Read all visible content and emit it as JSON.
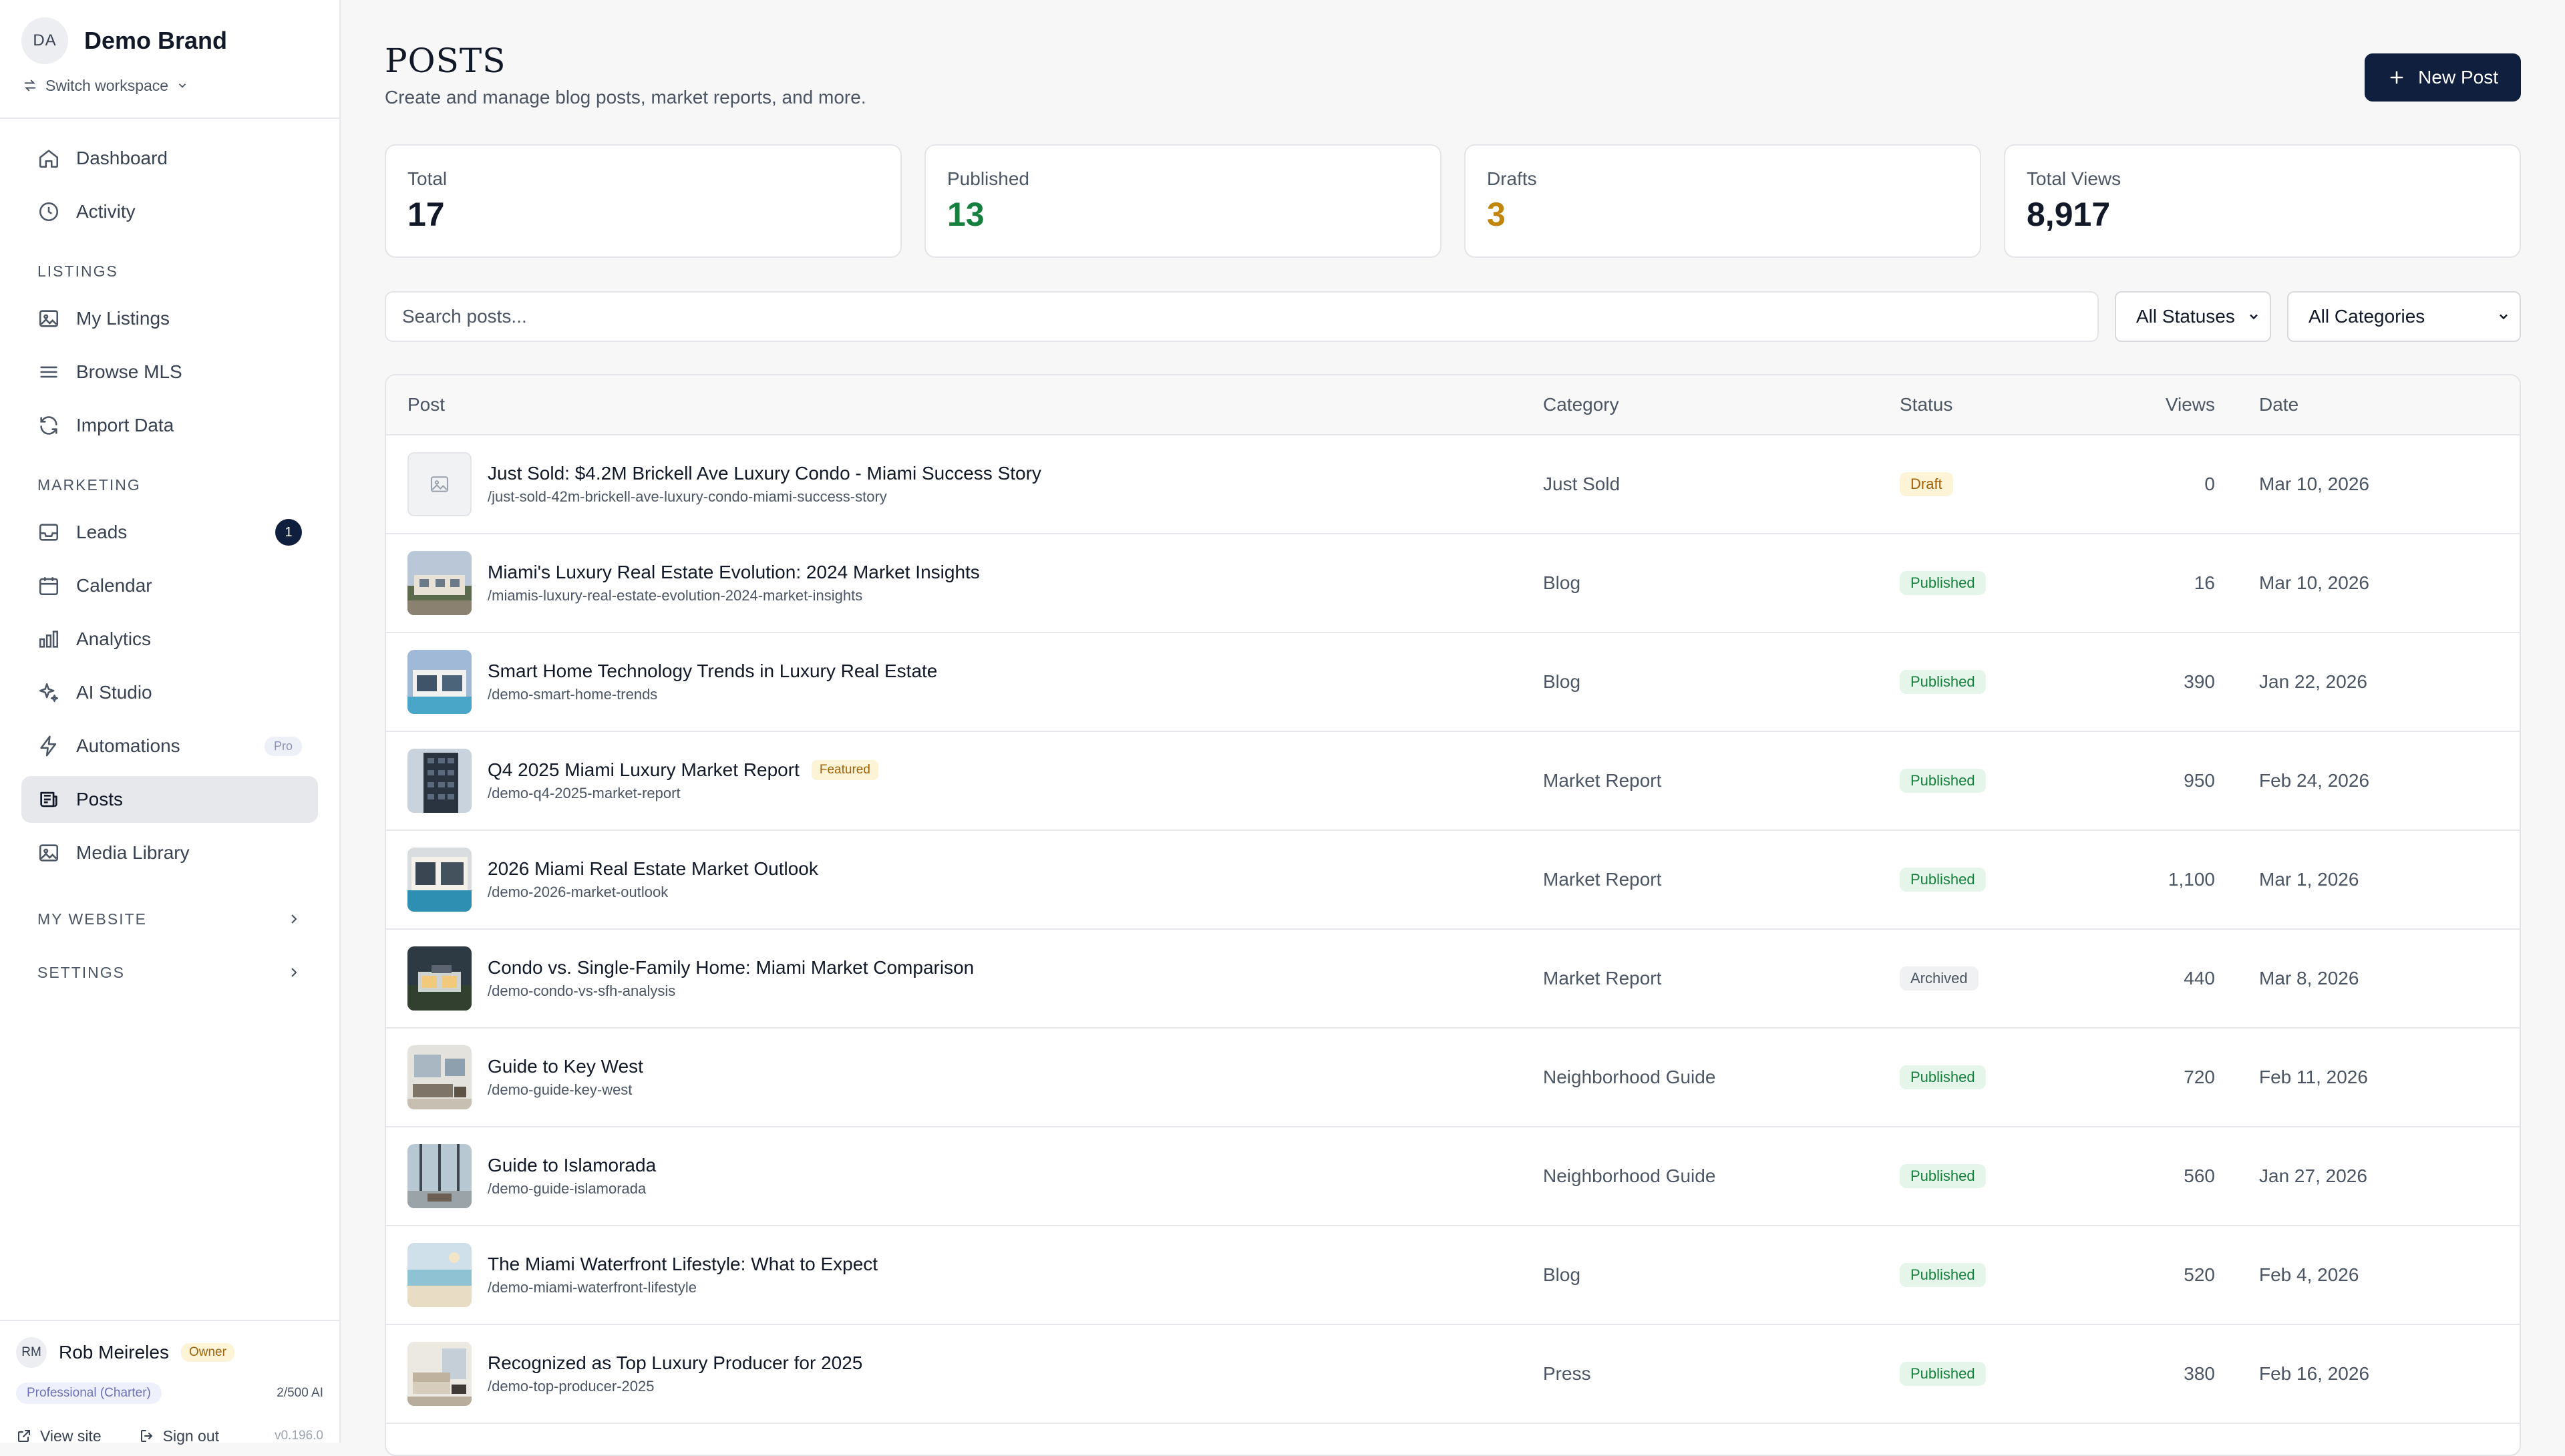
{
  "workspace": {
    "avatar_initials": "DA",
    "name": "Demo Brand",
    "switch_label": "Switch workspace"
  },
  "nav": {
    "dashboard": "Dashboard",
    "activity": "Activity",
    "listings_section": "LISTINGS",
    "my_listings": "My Listings",
    "browse_mls": "Browse MLS",
    "import_data": "Import Data",
    "marketing_section": "MARKETING",
    "leads": "Leads",
    "leads_badge": "1",
    "calendar": "Calendar",
    "analytics": "Analytics",
    "ai_studio": "AI Studio",
    "automations": "Automations",
    "automations_badge": "Pro",
    "posts": "Posts",
    "media_library": "Media Library",
    "my_website": "MY WEBSITE",
    "settings": "SETTINGS"
  },
  "user": {
    "initials": "RM",
    "name": "Rob Meireles",
    "role": "Owner",
    "plan": "Professional (Charter)",
    "ai_usage": "2/500 AI",
    "view_site": "View site",
    "sign_out": "Sign out",
    "version": "v0.196.0"
  },
  "header": {
    "title": "POSTS",
    "subtitle": "Create and manage blog posts, market reports, and more.",
    "new_post": "New Post"
  },
  "stats": [
    {
      "label": "Total",
      "value": "17",
      "color": "#111827"
    },
    {
      "label": "Published",
      "value": "13",
      "color": "#15803d"
    },
    {
      "label": "Drafts",
      "value": "3",
      "color": "#c2850c"
    },
    {
      "label": "Total Views",
      "value": "8,917",
      "color": "#111827"
    }
  ],
  "filters": {
    "search_placeholder": "Search posts...",
    "status_selected": "All Statuses",
    "category_selected": "All Categories"
  },
  "table": {
    "columns": {
      "post": "Post",
      "category": "Category",
      "status": "Status",
      "views": "Views",
      "date": "Date"
    },
    "rows": [
      {
        "title": "Just Sold: $4.2M Brickell Ave Luxury Condo - Miami Success Story",
        "slug": "/just-sold-42m-brickell-ave-luxury-condo-miami-success-story",
        "category": "Just Sold",
        "status": "Draft",
        "views": "0",
        "date": "Mar 10, 2026",
        "featured": "",
        "thumb": "placeholder"
      },
      {
        "title": "Miami's Luxury Real Estate Evolution: 2024 Market Insights",
        "slug": "/miamis-luxury-real-estate-evolution-2024-market-insights",
        "category": "Blog",
        "status": "Published",
        "views": "16",
        "date": "Mar 10, 2026",
        "featured": "",
        "thumb": "mansion"
      },
      {
        "title": "Smart Home Technology Trends in Luxury Real Estate",
        "slug": "/demo-smart-home-trends",
        "category": "Blog",
        "status": "Published",
        "views": "390",
        "date": "Jan 22, 2026",
        "featured": "",
        "thumb": "modern-house"
      },
      {
        "title": "Q4 2025 Miami Luxury Market Report",
        "slug": "/demo-q4-2025-market-report",
        "category": "Market Report",
        "status": "Published",
        "views": "950",
        "date": "Feb 24, 2026",
        "featured": "Featured",
        "thumb": "tower"
      },
      {
        "title": "2026 Miami Real Estate Market Outlook",
        "slug": "/demo-2026-market-outlook",
        "category": "Market Report",
        "status": "Published",
        "views": "1,100",
        "date": "Mar 1, 2026",
        "featured": "",
        "thumb": "pool-house"
      },
      {
        "title": "Condo vs. Single-Family Home: Miami Market Comparison",
        "slug": "/demo-condo-vs-sfh-analysis",
        "category": "Market Report",
        "status": "Archived",
        "views": "440",
        "date": "Mar 8, 2026",
        "featured": "",
        "thumb": "dusk-house"
      },
      {
        "title": "Guide to Key West",
        "slug": "/demo-guide-key-west",
        "category": "Neighborhood Guide",
        "status": "Published",
        "views": "720",
        "date": "Feb 11, 2026",
        "featured": "",
        "thumb": "living-room"
      },
      {
        "title": "Guide to Islamorada",
        "slug": "/demo-guide-islamorada",
        "category": "Neighborhood Guide",
        "status": "Published",
        "views": "560",
        "date": "Jan 27, 2026",
        "featured": "",
        "thumb": "balcony"
      },
      {
        "title": "The Miami Waterfront Lifestyle: What to Expect",
        "slug": "/demo-miami-waterfront-lifestyle",
        "category": "Blog",
        "status": "Published",
        "views": "520",
        "date": "Feb 4, 2026",
        "featured": "",
        "thumb": "beach"
      },
      {
        "title": "Recognized as Top Luxury Producer for 2025",
        "slug": "/demo-top-producer-2025",
        "category": "Press",
        "status": "Published",
        "views": "380",
        "date": "Feb 16, 2026",
        "featured": "",
        "thumb": "interior"
      }
    ]
  }
}
